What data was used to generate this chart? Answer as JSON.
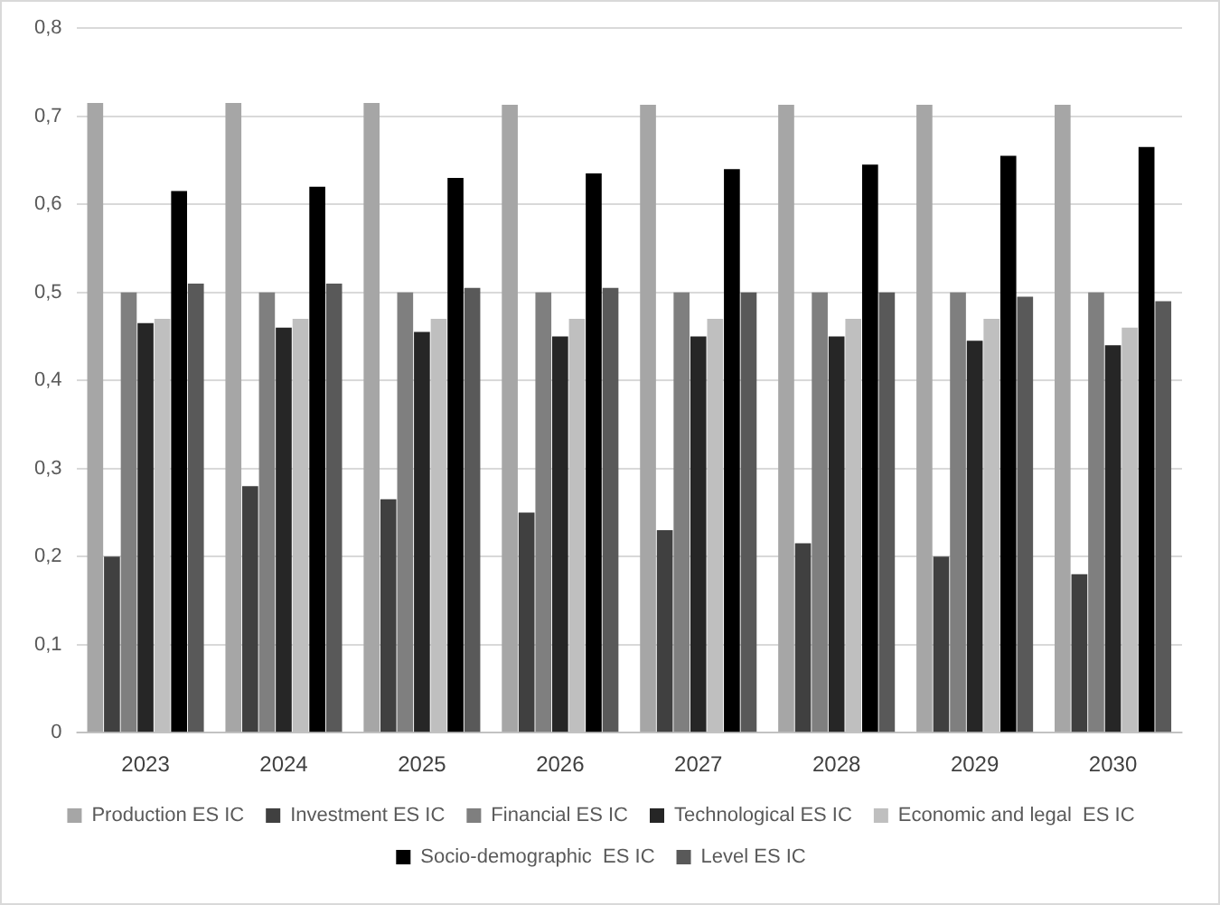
{
  "chart_data": {
    "type": "bar",
    "categories": [
      "2023",
      "2024",
      "2025",
      "2026",
      "2027",
      "2028",
      "2029",
      "2030"
    ],
    "series": [
      {
        "name": "Production ES IC",
        "color": "#a6a6a6",
        "values": [
          0.715,
          0.715,
          0.715,
          0.713,
          0.713,
          0.713,
          0.713,
          0.713
        ]
      },
      {
        "name": "Investment ES IC",
        "color": "#404040",
        "values": [
          0.2,
          0.28,
          0.265,
          0.25,
          0.23,
          0.215,
          0.2,
          0.18
        ]
      },
      {
        "name": "Financial ES IC",
        "color": "#7f7f7f",
        "values": [
          0.5,
          0.5,
          0.5,
          0.5,
          0.5,
          0.5,
          0.5,
          0.5
        ]
      },
      {
        "name": "Technological ES IC",
        "color": "#262626",
        "values": [
          0.465,
          0.46,
          0.455,
          0.45,
          0.45,
          0.45,
          0.445,
          0.44
        ]
      },
      {
        "name": "Economic and legal  ES IC",
        "color": "#bfbfbf",
        "values": [
          0.47,
          0.47,
          0.47,
          0.47,
          0.47,
          0.47,
          0.47,
          0.46
        ]
      },
      {
        "name": "Socio-demographic  ES IC",
        "color": "#000000",
        "values": [
          0.615,
          0.62,
          0.63,
          0.635,
          0.64,
          0.645,
          0.655,
          0.665
        ]
      },
      {
        "name": "Level ES IC",
        "color": "#595959",
        "values": [
          0.51,
          0.51,
          0.505,
          0.505,
          0.5,
          0.5,
          0.495,
          0.49
        ]
      }
    ],
    "ylim": [
      0,
      0.8
    ],
    "yticks": [
      0,
      {
        "value": 0.1,
        "label": "0,1"
      },
      {
        "value": 0.2,
        "label": "0,2"
      },
      {
        "value": 0.3,
        "label": "0,3"
      },
      {
        "value": 0.4,
        "label": "0,4"
      },
      {
        "value": 0.5,
        "label": "0,5"
      },
      {
        "value": 0.6,
        "label": "0,6"
      },
      {
        "value": 0.7,
        "label": "0,7"
      },
      {
        "value": 0.8,
        "label": "0,8"
      }
    ],
    "grid": "y",
    "legend": "bottom"
  }
}
